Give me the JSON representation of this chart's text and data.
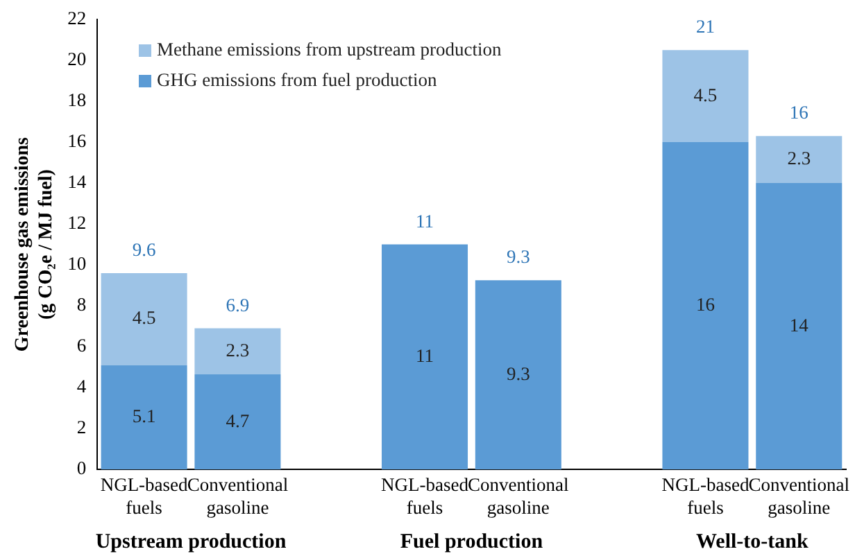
{
  "chart_data": {
    "type": "bar",
    "stacked": true,
    "ylabel": "Greenhouse gas emissions (g CO₂e / MJ fuel)",
    "categories": [
      "NGL-based fuels",
      "Conventional gasoline",
      null,
      "NGL-based fuels",
      "Conventional gasoline",
      null,
      "NGL-based fuels",
      "Conventional gasoline"
    ],
    "series": [
      {
        "name": "GHG emissions from fuel production",
        "color": "#5b9bd5",
        "values": [
          5.1,
          4.65,
          null,
          11,
          9.25,
          null,
          16,
          14
        ],
        "value_labels": [
          "5.1",
          "4.7",
          null,
          "11",
          "9.3",
          null,
          "16",
          "14"
        ]
      },
      {
        "name": "Methane emissions from upstream production",
        "color": "#9dc3e6",
        "values": [
          4.5,
          2.25,
          null,
          0,
          0,
          null,
          4.5,
          2.3
        ],
        "value_labels": [
          "4.5",
          "2.3",
          null,
          null,
          null,
          null,
          "4.5",
          "2.3"
        ]
      }
    ],
    "totals": [
      "9.6",
      "6.9",
      null,
      "11",
      "9.3",
      null,
      "21",
      "16"
    ],
    "annotations": [
      "Upstream production",
      "Fuel production",
      "Well-to-tank"
    ],
    "ylim": [
      0,
      22
    ],
    "yticks": [
      0,
      2,
      4,
      6,
      8,
      10,
      12,
      14,
      16,
      18,
      20,
      22
    ],
    "grid": false,
    "legend": "top left"
  }
}
